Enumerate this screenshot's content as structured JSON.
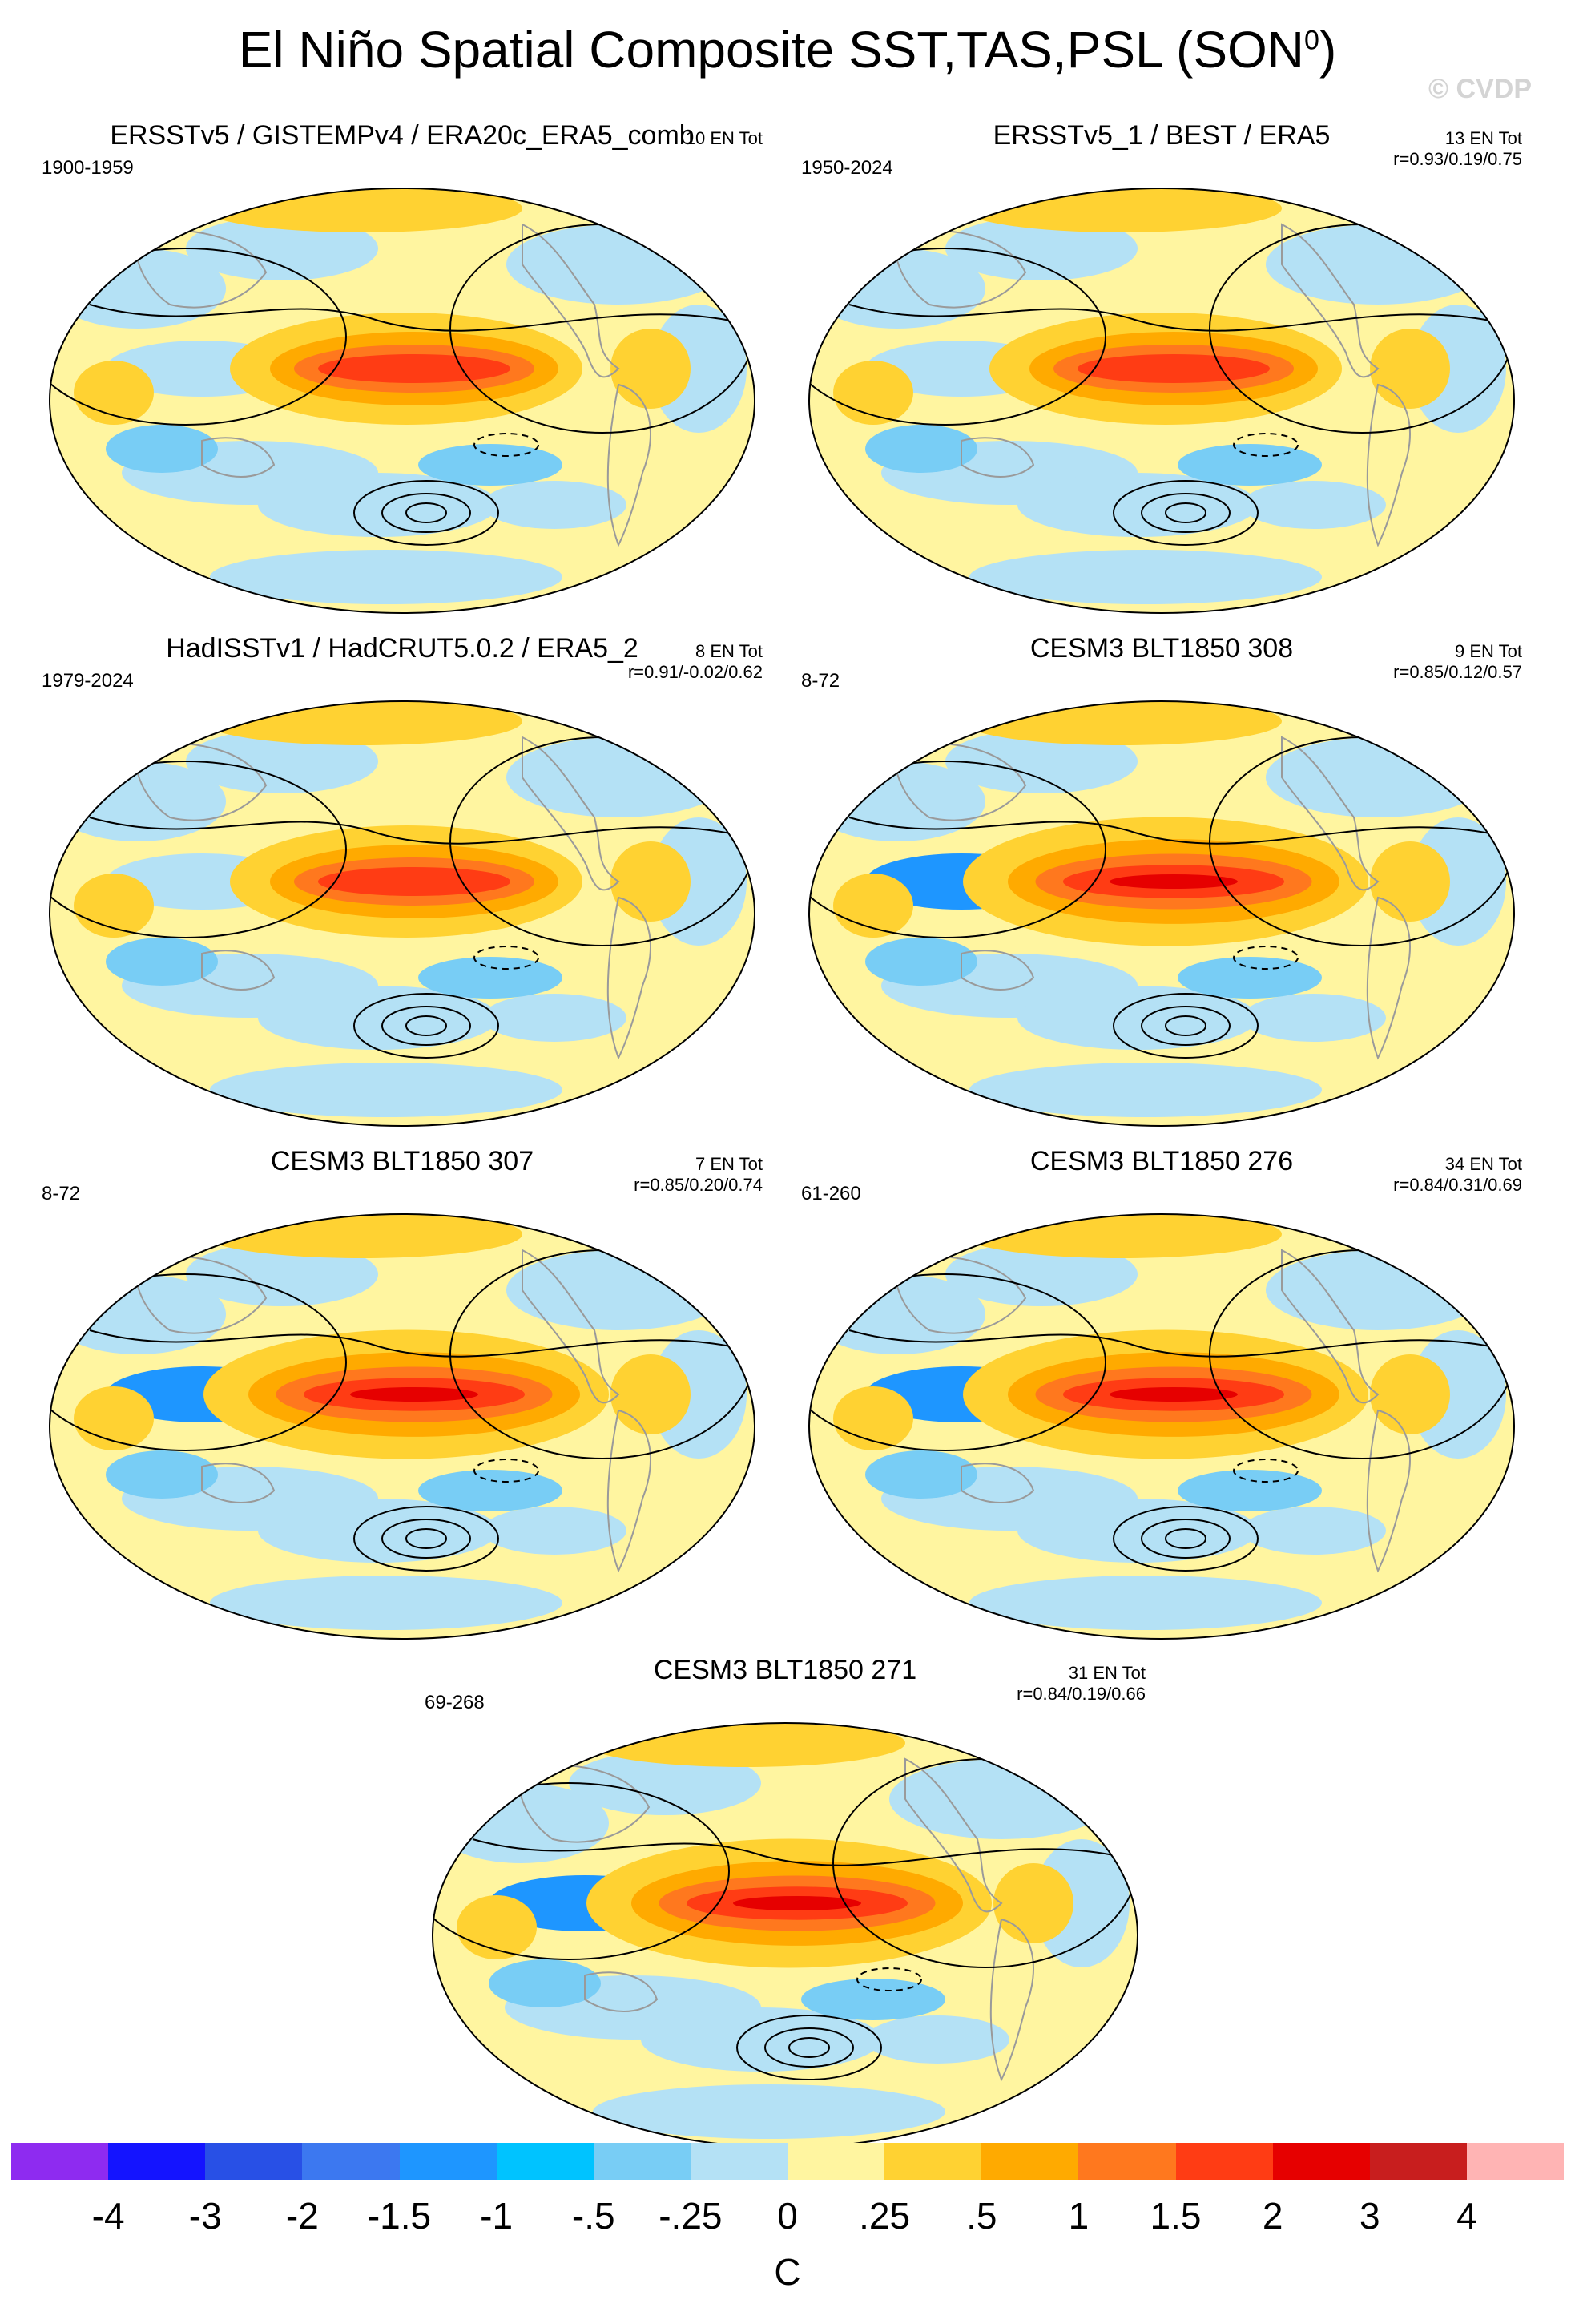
{
  "figure": {
    "title_main": "El Niño Spatial Composite SST,TAS,PSL (SON",
    "title_sup": "0",
    "title_end": ")",
    "watermark": "© CVDP"
  },
  "panels": [
    {
      "title": "ERSSTv5 / GISTEMPv4 / ERA20c_ERA5_comb",
      "period": "1900-1959",
      "stats_line1": "10 EN Tot",
      "stats_line2": ""
    },
    {
      "title": "ERSSTv5_1 / BEST / ERA5",
      "period": "1950-2024",
      "stats_line1": "13 EN Tot",
      "stats_line2": "r=0.93/0.19/0.75"
    },
    {
      "title": "HadISSTv1 / HadCRUT5.0.2 / ERA5_2",
      "period": "1979-2024",
      "stats_line1": "8 EN Tot",
      "stats_line2": "r=0.91/-0.02/0.62"
    },
    {
      "title": "CESM3 BLT1850 308",
      "period": "8-72",
      "stats_line1": "9 EN Tot",
      "stats_line2": "r=0.85/0.12/0.57"
    },
    {
      "title": "CESM3 BLT1850 307",
      "period": "8-72",
      "stats_line1": "7 EN Tot",
      "stats_line2": "r=0.85/0.20/0.74"
    },
    {
      "title": "CESM3 BLT1850 276",
      "period": "61-260",
      "stats_line1": "34 EN Tot",
      "stats_line2": "r=0.84/0.31/0.69"
    },
    {
      "title": "CESM3 BLT1850 271",
      "period": "69-268",
      "stats_line1": "31 EN Tot",
      "stats_line2": "r=0.84/0.19/0.66"
    }
  ],
  "colorbar": {
    "colors": [
      "#8e2bf0",
      "#1414ff",
      "#2850e6",
      "#3c78f0",
      "#1e96ff",
      "#00c3ff",
      "#78cdf5",
      "#b4e1f5",
      "#fff5a0",
      "#ffd232",
      "#ffaa00",
      "#ff781e",
      "#ff3c14",
      "#e60000",
      "#c81e1e",
      "#ffb4b4"
    ],
    "tick_labels": [
      "-4",
      "-3",
      "-2",
      "-1.5",
      "-1",
      "-.5",
      "-.25",
      "0",
      ".25",
      ".5",
      "1",
      "1.5",
      "2",
      "3",
      "4"
    ],
    "unit": "C"
  },
  "chart_data": {
    "type": "heatmap",
    "title": "El Niño Spatial Composite SST,TAS,PSL (SON0)",
    "variables": [
      "SST",
      "TAS",
      "PSL"
    ],
    "season": "SON",
    "projection": "global",
    "levels": [
      -4,
      -3,
      -2,
      -1.5,
      -1,
      -0.5,
      -0.25,
      0,
      0.25,
      0.5,
      1,
      1.5,
      2,
      3,
      4
    ],
    "unit": "C",
    "panels": [
      {
        "name": "ERSSTv5 / GISTEMPv4 / ERA20c_ERA5_comb",
        "years": "1900-1959",
        "events": 10,
        "r": null
      },
      {
        "name": "ERSSTv5_1 / BEST / ERA5",
        "years": "1950-2024",
        "events": 13,
        "r": [
          0.93,
          0.19,
          0.75
        ]
      },
      {
        "name": "HadISSTv1 / HadCRUT5.0.2 / ERA5_2",
        "years": "1979-2024",
        "events": 8,
        "r": [
          0.91,
          -0.02,
          0.62
        ]
      },
      {
        "name": "CESM3 BLT1850 308",
        "years": "8-72",
        "events": 9,
        "r": [
          0.85,
          0.12,
          0.57
        ]
      },
      {
        "name": "CESM3 BLT1850 307",
        "years": "8-72",
        "events": 7,
        "r": [
          0.85,
          0.2,
          0.74
        ]
      },
      {
        "name": "CESM3 BLT1850 276",
        "years": "61-260",
        "events": 34,
        "r": [
          0.84,
          0.31,
          0.69
        ]
      },
      {
        "name": "CESM3 BLT1850 271",
        "years": "69-268",
        "events": 31,
        "r": [
          0.84,
          0.19,
          0.66
        ]
      }
    ]
  }
}
